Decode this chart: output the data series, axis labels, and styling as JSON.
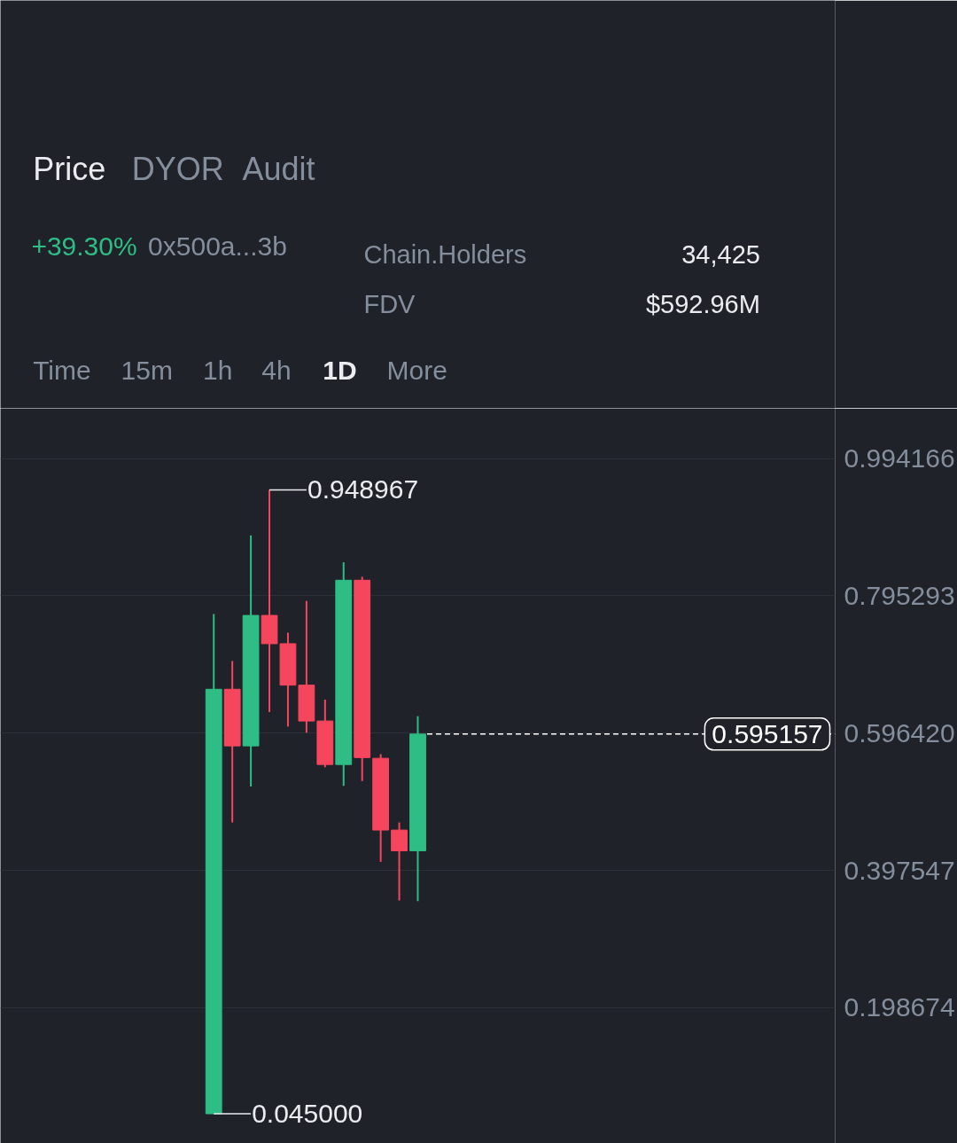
{
  "chart_data": {
    "type": "candlestick",
    "categories": [
      null,
      null,
      null,
      null,
      null,
      null,
      null,
      null,
      null,
      null,
      null,
      null,
      null,
      null,
      null,
      null,
      null,
      null,
      null,
      null,
      null,
      null,
      null,
      null,
      null,
      null,
      null,
      null,
      null,
      null,
      null,
      null,
      null,
      null,
      null,
      null,
      null,
      null,
      null,
      null,
      null,
      null,
      null,
      null,
      null
    ],
    "ohlc": [
      null,
      null,
      null,
      null,
      null,
      null,
      null,
      null,
      null,
      null,
      null,
      [
        0.045,
        0.769,
        0.045,
        0.66
      ],
      [
        0.66,
        0.701,
        0.467,
        0.578
      ],
      [
        0.578,
        0.883,
        0.519,
        0.767
      ],
      [
        0.767,
        0.948967,
        0.627,
        0.726
      ],
      [
        0.726,
        0.742,
        0.606,
        0.666
      ],
      [
        0.666,
        0.788,
        0.597,
        0.614
      ],
      [
        0.614,
        0.645,
        0.547,
        0.551
      ],
      [
        0.551,
        0.844,
        0.52,
        0.818
      ],
      [
        0.818,
        0.823,
        0.527,
        0.561
      ],
      [
        0.56,
        0.566,
        0.41,
        0.456
      ],
      [
        0.456,
        0.467,
        0.354,
        0.426
      ],
      [
        0.426,
        0.621,
        0.353,
        0.595157
      ],
      null,
      null,
      null,
      null,
      null,
      null,
      null,
      null,
      null,
      null,
      null,
      null,
      null,
      null,
      null,
      null,
      null,
      null,
      null,
      null,
      null,
      null
    ],
    "colors": [
      null,
      null,
      null,
      null,
      null,
      null,
      null,
      null,
      null,
      null,
      null,
      "#2ebd85",
      "#f6465d",
      "#2ebd85",
      "#f6465d",
      "#f6465d",
      "#f6465d",
      "#f6465d",
      "#2ebd85",
      "#f6465d",
      "#f6465d",
      "#f6465d",
      "#2ebd85",
      null,
      null,
      null,
      null,
      null,
      null,
      null,
      null,
      null,
      null,
      null,
      null,
      null,
      null,
      null,
      null,
      null,
      null,
      null,
      null,
      null,
      null
    ],
    "ylim": [
      0.002,
      1.067
    ],
    "yticks": [
      0.994166,
      0.795293,
      {
        "value": 0.59642,
        "label": "0.596420"
      },
      0.397547,
      0.198674
    ],
    "grid": "y",
    "tick_labels": "y",
    "ref_lines": [
      {
        "axis": "y",
        "value": 0.595157,
        "label": "0.595157",
        "color": "#ffffff",
        "line_style": "dashed"
      }
    ],
    "annotations": [
      "Price",
      "DYOR",
      "Audit",
      "+39.30%",
      "0x500a...3b",
      "Chain.Holders",
      "34,425",
      "FDV",
      "$592.96M",
      "Time",
      "15m",
      "1h",
      "4h",
      "1D",
      "More",
      "0.948967",
      "0.045000"
    ]
  }
}
